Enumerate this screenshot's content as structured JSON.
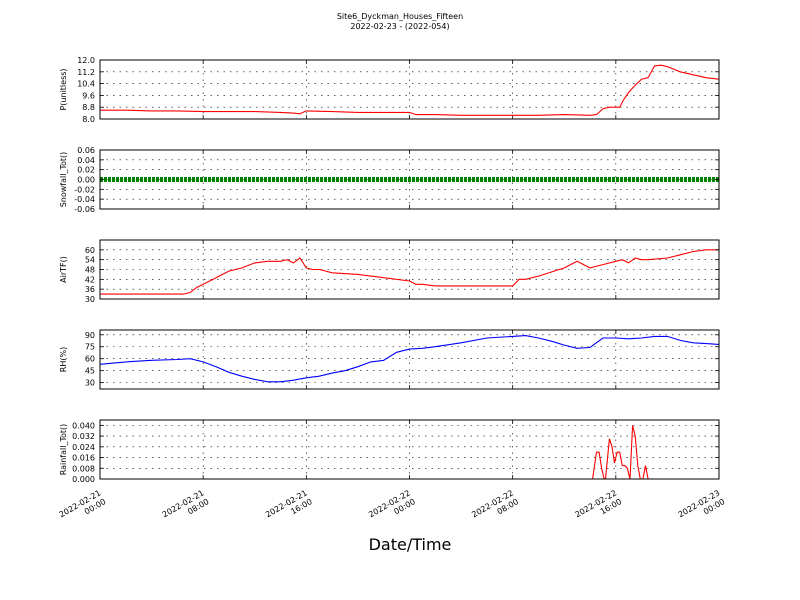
{
  "figure": {
    "title_line1": "Site6_Dyckman_Houses_Fifteen",
    "title_line2": "2022-02-23 - (2022-054)",
    "xlabel": "Date/Time",
    "x_ticks": [
      {
        "line1": "2022-02-21",
        "line2": "00:00"
      },
      {
        "line1": "2022-02-21",
        "line2": "08:00"
      },
      {
        "line1": "2022-02-21",
        "line2": "16:00"
      },
      {
        "line1": "2022-02-22",
        "line2": "00:00"
      },
      {
        "line1": "2022-02-22",
        "line2": "08:00"
      },
      {
        "line1": "2022-02-22",
        "line2": "16:00"
      },
      {
        "line1": "2022-02-23",
        "line2": "00:00"
      }
    ]
  },
  "chart_data": [
    {
      "type": "line",
      "ylabel": "P(unitless)",
      "ylim": [
        8.0,
        12.0
      ],
      "yticks": [
        "8.0",
        "8.8",
        "9.6",
        "10.4",
        "11.2",
        "12.0"
      ],
      "color": "#ff0000",
      "x_hours": [
        0,
        2,
        4,
        6,
        8,
        10,
        12,
        14,
        15,
        15.5,
        16,
        18,
        20,
        22,
        24,
        24.5,
        26,
        28,
        30,
        32,
        34,
        36,
        38,
        38.5,
        39,
        39.5,
        40,
        40.3,
        40.6,
        41,
        41.5,
        42,
        42.5,
        43,
        43.5,
        44,
        45,
        46,
        47,
        48
      ],
      "y": [
        8.6,
        8.6,
        8.55,
        8.55,
        8.5,
        8.5,
        8.5,
        8.45,
        8.4,
        8.35,
        8.55,
        8.5,
        8.45,
        8.45,
        8.45,
        8.3,
        8.3,
        8.25,
        8.25,
        8.25,
        8.25,
        8.3,
        8.25,
        8.3,
        8.7,
        8.8,
        8.8,
        8.8,
        9.3,
        9.8,
        10.3,
        10.7,
        10.8,
        11.6,
        11.65,
        11.55,
        11.2,
        11.0,
        10.8,
        10.7
      ]
    },
    {
      "type": "line",
      "ylabel": "Snowfall_Tot()",
      "ylim": [
        -0.06,
        0.06
      ],
      "yticks": [
        "-0.06",
        "-0.04",
        "-0.02",
        "0.00",
        "0.02",
        "0.04",
        "0.06"
      ],
      "color": "#008000",
      "marker": "square",
      "x_hours": [
        0,
        48
      ],
      "y": [
        0.0,
        0.0
      ]
    },
    {
      "type": "line",
      "ylabel": "AirTF()",
      "ylim": [
        30,
        66
      ],
      "yticks": [
        "30",
        "36",
        "42",
        "48",
        "54",
        "60"
      ],
      "color": "#ff0000",
      "x_hours": [
        0,
        2,
        4,
        6,
        6.5,
        7,
        7.5,
        8,
        9,
        9.5,
        10,
        11,
        12,
        13,
        14,
        14.5,
        15,
        15.5,
        16,
        16.5,
        17,
        17.5,
        18,
        20,
        22,
        24,
        24.5,
        25,
        26,
        28,
        30,
        32,
        32.5,
        33,
        34,
        36,
        37,
        37.5,
        38,
        39,
        40,
        40.5,
        41,
        41.5,
        42,
        42.5,
        44,
        45,
        46,
        47,
        48
      ],
      "y": [
        33,
        33,
        33,
        33,
        33,
        34,
        37,
        39,
        43,
        45,
        47,
        49,
        52,
        53,
        53,
        54,
        52,
        55,
        49,
        48,
        48,
        47,
        46,
        45,
        43,
        41,
        39,
        39,
        38,
        38,
        38,
        38,
        42,
        42,
        44,
        49,
        53,
        51,
        49,
        51,
        53,
        54,
        52,
        55,
        54,
        54,
        55,
        57,
        59,
        60,
        60
      ]
    },
    {
      "type": "line",
      "ylabel": "RH(%)",
      "ylim": [
        22,
        96
      ],
      "yticks": [
        "30",
        "45",
        "60",
        "75",
        "90"
      ],
      "color": "#0000ff",
      "x_hours": [
        0,
        2,
        4,
        6,
        7,
        8,
        9,
        10,
        11,
        12,
        13,
        14,
        15,
        16,
        17,
        18,
        19,
        20,
        21,
        22,
        23,
        24,
        25,
        26,
        28,
        30,
        32,
        33,
        34,
        35,
        36,
        37,
        38,
        39,
        40,
        41,
        42,
        43,
        44,
        45,
        46,
        47,
        48
      ],
      "y": [
        53,
        56,
        58,
        59,
        60,
        56,
        50,
        43,
        38,
        34,
        31,
        31,
        33,
        36,
        38,
        42,
        45,
        50,
        56,
        58,
        68,
        72,
        73,
        75,
        80,
        86,
        88,
        89,
        86,
        82,
        77,
        73,
        74,
        86,
        86,
        85,
        86,
        88,
        88,
        83,
        80,
        79,
        78
      ]
    },
    {
      "type": "line",
      "ylabel": "Rainfall_Tot()",
      "ylim": [
        0,
        0.044
      ],
      "yticks": [
        "0.000",
        "0.008",
        "0.016",
        "0.024",
        "0.032",
        "0.040"
      ],
      "color": "#ff0000",
      "x_hours": [
        0,
        38,
        38.2,
        38.5,
        38.7,
        38.9,
        39.1,
        39.2,
        39.5,
        39.7,
        39.9,
        40.1,
        40.3,
        40.5,
        40.7,
        40.9,
        41.1,
        41.3,
        41.5,
        41.7,
        41.9,
        42.1,
        42.3,
        42.5,
        42.7,
        42.9,
        43.1,
        48
      ],
      "y": [
        0,
        0,
        0,
        0.02,
        0.02,
        0.008,
        0,
        0,
        0.03,
        0.024,
        0.012,
        0.02,
        0.02,
        0.01,
        0.01,
        0.008,
        0,
        0.04,
        0.032,
        0.01,
        0,
        0,
        0.01,
        0,
        0,
        0,
        0,
        0
      ]
    }
  ]
}
